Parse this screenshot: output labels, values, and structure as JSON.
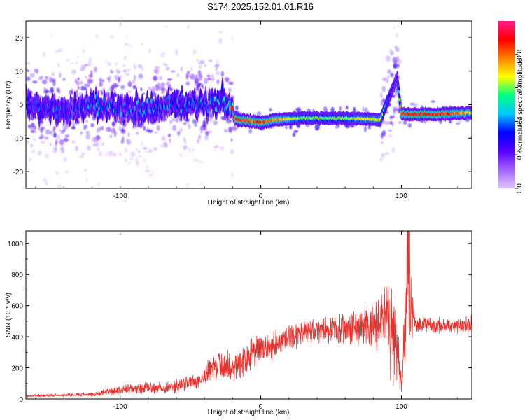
{
  "title": "S174.2025.152.01.01.R16",
  "colors": {
    "signal": "#e8322e",
    "axes": "#000000",
    "colormap": [
      "#e2c6ff",
      "#a064ff",
      "#5a00ff",
      "#0000ff",
      "#00c8ff",
      "#00ff80",
      "#ffff00",
      "#ff8000",
      "#ff0000",
      "#ff1a8c"
    ]
  },
  "chart_data": [
    {
      "type": "heatmap",
      "xlabel": "Height of straight line (km)",
      "ylabel": "Frequency (Hz)",
      "xlim": [
        -167,
        150
      ],
      "ylim": [
        -25,
        25
      ],
      "x_ticks": [
        -100,
        0,
        100
      ],
      "y_ticks": [
        -20,
        -10,
        0,
        10,
        20
      ],
      "colorbar": {
        "label": "Normalized spectral amplitude",
        "range": [
          0,
          1
        ],
        "ticks": [
          "0.0",
          "0.2",
          "0.4",
          "0.6",
          "0.8"
        ]
      },
      "ridge": [
        {
          "x": -167,
          "freq": 0.5,
          "amp": 0.35
        },
        {
          "x": -150,
          "freq": -1.5,
          "amp": 0.35
        },
        {
          "x": -135,
          "freq": -2.0,
          "amp": 0.3
        },
        {
          "x": -120,
          "freq": 0.0,
          "amp": 0.4
        },
        {
          "x": -100,
          "freq": -1.0,
          "amp": 0.35
        },
        {
          "x": -80,
          "freq": -1.5,
          "amp": 0.4
        },
        {
          "x": -60,
          "freq": 0.0,
          "amp": 0.35
        },
        {
          "x": -40,
          "freq": 0.0,
          "amp": 0.4
        },
        {
          "x": -25,
          "freq": 1.5,
          "amp": 0.45
        },
        {
          "x": -18,
          "freq": -4.5,
          "amp": 0.9
        },
        {
          "x": -5,
          "freq": -5.0,
          "amp": 0.8
        },
        {
          "x": 0,
          "freq": -5.5,
          "amp": 0.9
        },
        {
          "x": 10,
          "freq": -4.5,
          "amp": 0.75
        },
        {
          "x": 30,
          "freq": -4.0,
          "amp": 0.6
        },
        {
          "x": 50,
          "freq": -4.0,
          "amp": 0.6
        },
        {
          "x": 70,
          "freq": -4.2,
          "amp": 0.65
        },
        {
          "x": 85,
          "freq": -4.5,
          "amp": 0.7
        },
        {
          "x": 92,
          "freq": 3.0,
          "amp": 0.3
        },
        {
          "x": 97,
          "freq": 8.0,
          "amp": 0.25
        },
        {
          "x": 100,
          "freq": -2.8,
          "amp": 0.85
        },
        {
          "x": 120,
          "freq": -3.0,
          "amp": 0.9
        },
        {
          "x": 140,
          "freq": -2.5,
          "amp": 0.8
        },
        {
          "x": 150,
          "freq": -2.5,
          "amp": 0.7
        }
      ]
    },
    {
      "type": "line",
      "xlabel": "Height of straight line (km)",
      "ylabel": "SNR (10 * v/v)",
      "xlim": [
        -167,
        150
      ],
      "ylim": [
        0,
        1080
      ],
      "x_ticks": [
        -100,
        0,
        100
      ],
      "y_ticks": [
        0,
        200,
        400,
        600,
        800,
        1000
      ],
      "envelope": [
        {
          "x": -167,
          "mean": 20,
          "spread": 10
        },
        {
          "x": -140,
          "mean": 25,
          "spread": 12
        },
        {
          "x": -120,
          "mean": 30,
          "spread": 15
        },
        {
          "x": -100,
          "mean": 55,
          "spread": 35
        },
        {
          "x": -80,
          "mean": 70,
          "spread": 45
        },
        {
          "x": -60,
          "mean": 80,
          "spread": 50
        },
        {
          "x": -45,
          "mean": 120,
          "spread": 70
        },
        {
          "x": -30,
          "mean": 220,
          "spread": 120
        },
        {
          "x": -20,
          "mean": 200,
          "spread": 130
        },
        {
          "x": -5,
          "mean": 300,
          "spread": 120
        },
        {
          "x": 5,
          "mean": 330,
          "spread": 110
        },
        {
          "x": 20,
          "mean": 400,
          "spread": 100
        },
        {
          "x": 40,
          "mean": 440,
          "spread": 90
        },
        {
          "x": 60,
          "mean": 450,
          "spread": 110
        },
        {
          "x": 80,
          "mean": 460,
          "spread": 200
        },
        {
          "x": 90,
          "mean": 500,
          "spread": 330
        },
        {
          "x": 95,
          "mean": 420,
          "spread": 380
        },
        {
          "x": 100,
          "mean": 120,
          "spread": 100
        },
        {
          "x": 104,
          "mean": 650,
          "spread": 420
        },
        {
          "x": 110,
          "mean": 480,
          "spread": 60
        },
        {
          "x": 130,
          "mean": 470,
          "spread": 60
        },
        {
          "x": 150,
          "mean": 480,
          "spread": 60
        }
      ]
    }
  ]
}
